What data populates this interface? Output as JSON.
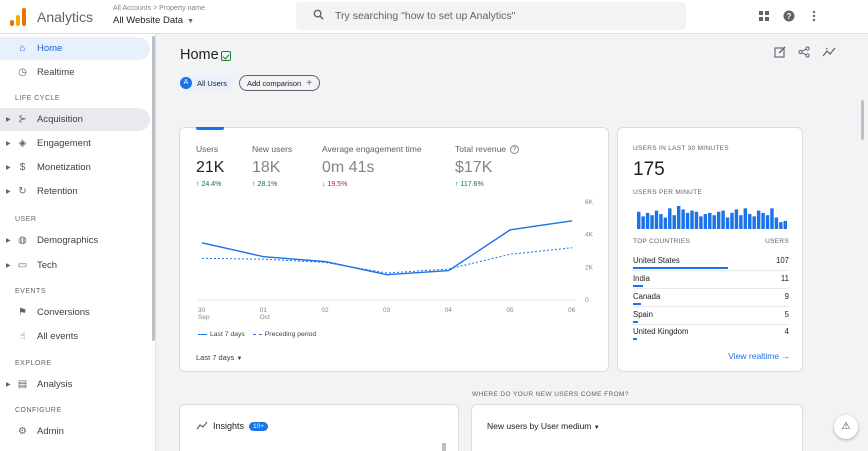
{
  "header": {
    "app_name": "Analytics",
    "account_path": "All Accounts > Property name",
    "account_name": "All Website Data",
    "search_placeholder": "Try searching \"how to set up Analytics\""
  },
  "sidebar": {
    "home": "Home",
    "realtime": "Realtime",
    "lifecycle_label": "LIFE CYCLE",
    "acquisition": "Acquisition",
    "engagement": "Engagement",
    "monetization": "Monetization",
    "retention": "Retention",
    "user_label": "USER",
    "demographics": "Demographics",
    "tech": "Tech",
    "events_label": "EVENTS",
    "conversions": "Conversions",
    "all_events": "All events",
    "explore_label": "EXPLORE",
    "analysis": "Analysis",
    "configure_label": "CONFIGURE",
    "admin": "Admin"
  },
  "main": {
    "title": "Home",
    "chip_all_users_avatar": "A",
    "chip_all_users": "All Users",
    "add_comparison": "Add comparison"
  },
  "metrics": [
    {
      "label": "Users",
      "value": "21K",
      "delta": "24.4%",
      "direction": "up"
    },
    {
      "label": "New users",
      "value": "18K",
      "delta": "28.1%",
      "direction": "up"
    },
    {
      "label": "Average engagement time",
      "value": "0m 41s",
      "delta": "19.5%",
      "direction": "down"
    },
    {
      "label": "Total revenue",
      "value": "$17K",
      "delta": "117.6%",
      "direction": "up"
    }
  ],
  "chart_data": {
    "type": "line",
    "x": [
      "30 Sep",
      "01 Oct",
      "02",
      "03",
      "04",
      "05",
      "06"
    ],
    "x_labels": [
      [
        "30",
        "Sep"
      ],
      [
        "01",
        "Oct"
      ],
      [
        "02",
        ""
      ],
      [
        "03",
        ""
      ],
      [
        "04",
        ""
      ],
      [
        "05",
        ""
      ],
      [
        "06",
        ""
      ]
    ],
    "y_ticks": [
      "0",
      "2K",
      "4K",
      "6K"
    ],
    "ylim": [
      0,
      6000
    ],
    "series": [
      {
        "name": "Last 7 days",
        "values": [
          3500,
          2650,
          2350,
          1550,
          1800,
          4300,
          4850
        ],
        "style": "solid"
      },
      {
        "name": "Preceding period",
        "values": [
          2550,
          2500,
          2300,
          1650,
          1900,
          2800,
          3200
        ],
        "style": "dashed"
      }
    ],
    "color": "#1a73e8",
    "grid": false
  },
  "range_selector": "Last 7 days",
  "realtime": {
    "title": "USERS IN LAST 30 MINUTES",
    "count": "175",
    "per_minute_label": "USERS PER MINUTE",
    "per_minute": [
      0.75,
      0.55,
      0.7,
      0.6,
      0.8,
      0.65,
      0.5,
      0.9,
      0.6,
      1.0,
      0.85,
      0.7,
      0.8,
      0.75,
      0.55,
      0.65,
      0.7,
      0.6,
      0.75,
      0.8,
      0.5,
      0.7,
      0.85,
      0.6,
      0.9,
      0.65,
      0.55,
      0.8,
      0.7,
      0.6,
      0.9,
      0.5,
      0.3,
      0.35
    ],
    "countries_label": "TOP COUNTRIES",
    "users_label": "USERS",
    "countries": [
      {
        "name": "United States",
        "value": "107",
        "share": 1.0
      },
      {
        "name": "India",
        "value": "11",
        "share": 0.1
      },
      {
        "name": "Canada",
        "value": "9",
        "share": 0.08
      },
      {
        "name": "Spain",
        "value": "5",
        "share": 0.05
      },
      {
        "name": "United Kingdom",
        "value": "4",
        "share": 0.04
      }
    ],
    "view_link": "View realtime"
  },
  "bottom": {
    "where_label": "WHERE DO YOUR NEW USERS COME FROM?",
    "insights_title": "Insights",
    "insights_badge": "10+",
    "new_users_title": "New users by User medium"
  }
}
